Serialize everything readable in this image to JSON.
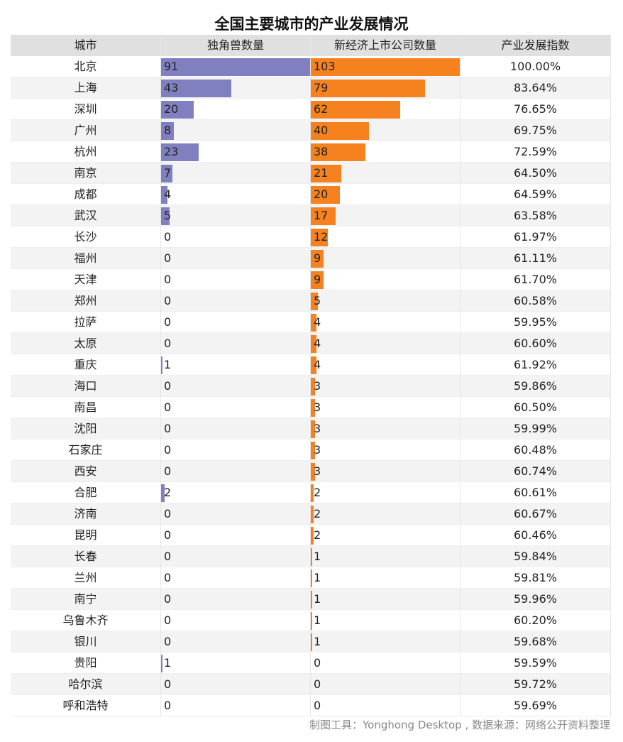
{
  "title": "全国主要城市的产业发展情况",
  "table": {
    "columns": [
      "城市",
      "独角兽数量",
      "新经济上市公司数量",
      "产业发展指数"
    ],
    "colors": [
      "#8080c0",
      "#f5821f"
    ],
    "rows": [
      [
        "北京",
        91,
        103,
        "100.00%"
      ],
      [
        "上海",
        43,
        79,
        "83.64%"
      ],
      [
        "深圳",
        20,
        62,
        "76.65%"
      ],
      [
        "广州",
        8,
        40,
        "69.75%"
      ],
      [
        "杭州",
        23,
        38,
        "72.59%"
      ],
      [
        "南京",
        7,
        21,
        "64.50%"
      ],
      [
        "成都",
        4,
        20,
        "64.59%"
      ],
      [
        "武汉",
        5,
        17,
        "63.58%"
      ],
      [
        "长沙",
        0,
        12,
        "61.97%"
      ],
      [
        "福州",
        0,
        9,
        "61.11%"
      ],
      [
        "天津",
        0,
        9,
        "61.70%"
      ],
      [
        "郑州",
        0,
        5,
        "60.58%"
      ],
      [
        "拉萨",
        0,
        4,
        "59.95%"
      ],
      [
        "太原",
        0,
        4,
        "60.60%"
      ],
      [
        "重庆",
        1,
        4,
        "61.92%"
      ],
      [
        "海口",
        0,
        3,
        "59.86%"
      ],
      [
        "南昌",
        0,
        3,
        "60.50%"
      ],
      [
        "沈阳",
        0,
        3,
        "59.99%"
      ],
      [
        "石家庄",
        0,
        3,
        "60.48%"
      ],
      [
        "西安",
        0,
        3,
        "60.74%"
      ],
      [
        "合肥",
        2,
        2,
        "60.61%"
      ],
      [
        "济南",
        0,
        2,
        "60.67%"
      ],
      [
        "昆明",
        0,
        2,
        "60.46%"
      ],
      [
        "长春",
        0,
        1,
        "59.84%"
      ],
      [
        "兰州",
        0,
        1,
        "59.81%"
      ],
      [
        "南宁",
        0,
        1,
        "59.96%"
      ],
      [
        "乌鲁木齐",
        0,
        1,
        "60.20%"
      ],
      [
        "银川",
        0,
        1,
        "59.68%"
      ],
      [
        "贵阳",
        1,
        0,
        "59.59%"
      ],
      [
        "哈尔滨",
        0,
        0,
        "59.72%"
      ],
      [
        "呼和浩特",
        0,
        0,
        "59.69%"
      ]
    ]
  },
  "footer": "制图工具：Yonghong Desktop , 数据来源：网络公开资料整理"
}
